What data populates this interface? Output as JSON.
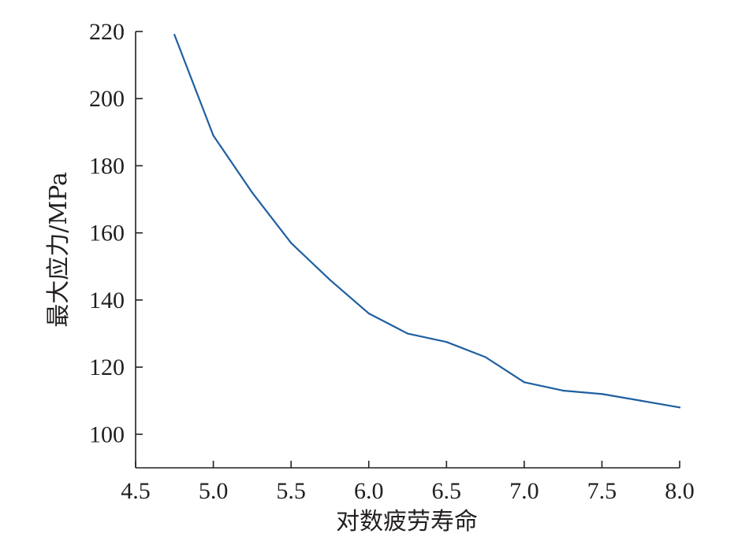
{
  "chart_data": {
    "type": "line",
    "title": "",
    "xlabel": "对数疲劳寿命",
    "ylabel": "最大应力/MPa",
    "xlim": [
      4.5,
      8.0
    ],
    "ylim": [
      90,
      220
    ],
    "xticks": [
      4.5,
      5.0,
      5.5,
      6.0,
      6.5,
      7.0,
      7.5,
      8.0
    ],
    "xtick_labels": [
      "4.5",
      "5.0",
      "5.5",
      "6.0",
      "6.5",
      "7.0",
      "7.5",
      "8.0"
    ],
    "yticks": [
      100,
      120,
      140,
      160,
      180,
      200,
      220
    ],
    "ytick_labels": [
      "100",
      "120",
      "140",
      "160",
      "180",
      "200",
      "220"
    ],
    "grid": false,
    "legend": "none",
    "series": [
      {
        "color": "#1f5fa0",
        "x": [
          4.75,
          5.0,
          5.25,
          5.5,
          5.75,
          6.0,
          6.25,
          6.5,
          6.75,
          7.0,
          7.25,
          7.5,
          7.75,
          8.0
        ],
        "y": [
          219,
          189,
          172,
          157,
          146,
          136,
          130,
          127.5,
          123,
          115.5,
          113,
          112,
          110,
          108
        ]
      }
    ]
  }
}
